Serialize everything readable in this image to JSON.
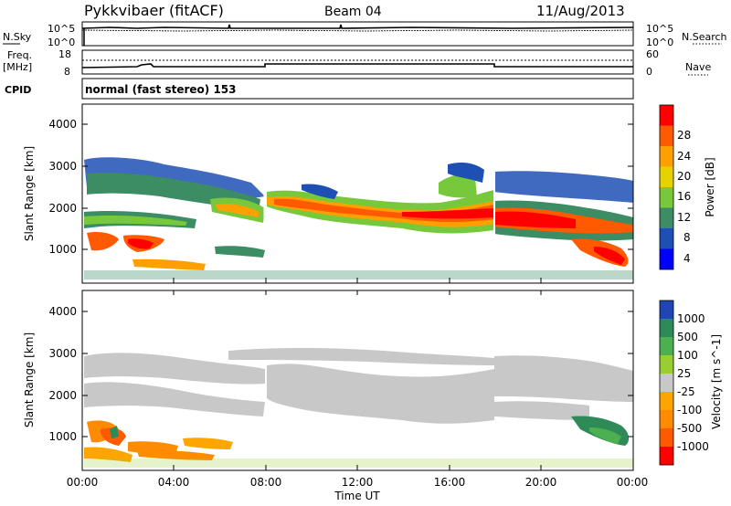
{
  "header": {
    "station": "Pykkvibaer (fitACF)",
    "beam": "Beam 04",
    "date": "11/Aug/2013"
  },
  "noise_panel": {
    "left_label": "N.Sky",
    "left_ticks": [
      "10^5",
      "10^0"
    ],
    "right_ticks": [
      "10^5",
      "10^0"
    ],
    "right_label": "N.Search"
  },
  "freq_panel": {
    "left_label_1": "Freq.",
    "left_label_2": "[MHz]",
    "left_ticks": [
      "18",
      "8"
    ],
    "right_ticks": [
      "60",
      "0"
    ],
    "right_label": "Nave"
  },
  "cpid": {
    "label": "CPID",
    "value": "normal (fast stereo) 153"
  },
  "axes": {
    "ylabel": "Slant Range [km]",
    "yticks": [
      "4000",
      "3000",
      "2000",
      "1000"
    ],
    "xticks": [
      "00:00",
      "04:00",
      "08:00",
      "12:00",
      "16:00",
      "20:00",
      "00:00"
    ],
    "xlabel": "Time UT"
  },
  "power_colorbar": {
    "label": "Power [dB]",
    "ticks": [
      "28",
      "24",
      "20",
      "16",
      "12",
      "8",
      "4"
    ],
    "colors": [
      "#ff0000",
      "#ff5a00",
      "#ffa000",
      "#e6d200",
      "#78c83c",
      "#3c8c64",
      "#1e50b4",
      "#0000ff"
    ]
  },
  "velocity_colorbar": {
    "label": "Velocity [m s^-1]",
    "ticks": [
      "1000",
      "500",
      "100",
      "25",
      "-25",
      "-100",
      "-500",
      "-1000"
    ],
    "colors": [
      "#1e46b4",
      "#2e8b57",
      "#4caf50",
      "#9acd32",
      "#c8c8c8",
      "#ffa500",
      "#ff8c00",
      "#ff5a00",
      "#ff0000"
    ]
  },
  "chart_data": {
    "type": "heatmap",
    "title": "Pykkvibaer (fitACF)",
    "xlabel": "Time UT",
    "ylabel": "Slant Range [km]",
    "x_range_hours": [
      0,
      24
    ],
    "y_range_km": [
      180,
      4600
    ],
    "freq_mhz_segments": [
      {
        "start_h": 0,
        "end_h": 8,
        "value": 10.5
      },
      {
        "start_h": 8,
        "end_h": 18,
        "value": 12.3
      },
      {
        "start_h": 18,
        "end_h": 24,
        "value": 10.5
      }
    ],
    "power_bands": [
      {
        "time_h": 0.5,
        "range_km": [
          900,
          3100
        ],
        "power_db": 14
      },
      {
        "time_h": 2,
        "range_km": [
          700,
          2600
        ],
        "power_db": 18
      },
      {
        "time_h": 4,
        "range_km": [
          600,
          2600
        ],
        "power_db": 16
      },
      {
        "time_h": 6,
        "range_km": [
          1300,
          2400
        ],
        "power_db": 22
      },
      {
        "time_h": 9,
        "range_km": [
          1700,
          2200
        ],
        "power_db": 24
      },
      {
        "time_h": 12,
        "range_km": [
          1700,
          2100
        ],
        "power_db": 22
      },
      {
        "time_h": 15,
        "range_km": [
          1600,
          2100
        ],
        "power_db": 26
      },
      {
        "time_h": 18,
        "range_km": [
          1500,
          2000
        ],
        "power_db": 28
      },
      {
        "time_h": 21,
        "range_km": [
          1200,
          1800
        ],
        "power_db": 24
      },
      {
        "time_h": 23,
        "range_km": [
          700,
          2600
        ],
        "power_db": 16
      }
    ],
    "velocity_bands": [
      {
        "time_h": 0.5,
        "range_km": [
          900,
          3100
        ],
        "velocity_ms": 10
      },
      {
        "time_h": 2.5,
        "range_km": [
          500,
          1400
        ],
        "velocity_ms": -300
      },
      {
        "time_h": 4.5,
        "range_km": [
          500,
          900
        ],
        "velocity_ms": -300
      },
      {
        "time_h": 12,
        "range_km": [
          1600,
          2400
        ],
        "velocity_ms": 0
      },
      {
        "time_h": 22.5,
        "range_km": [
          700,
          1300
        ],
        "velocity_ms": 150
      }
    ]
  }
}
